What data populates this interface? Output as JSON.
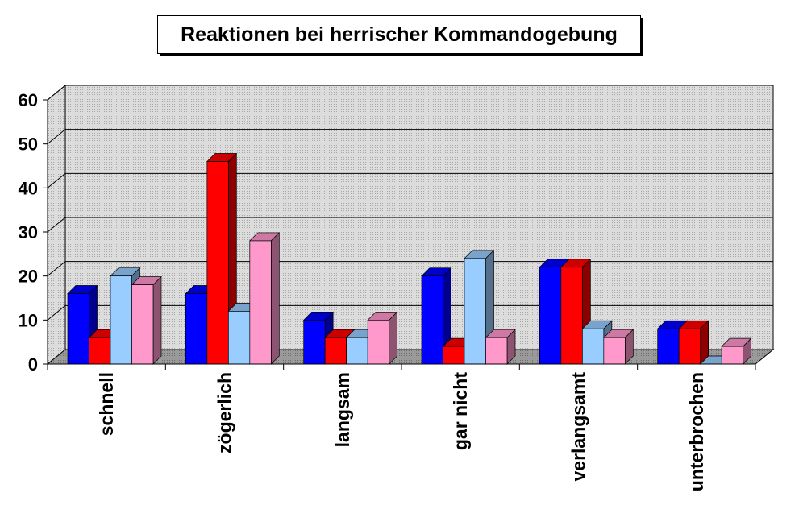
{
  "chart_data": {
    "type": "bar",
    "title": "Reaktionen bei herrischer Kommandogebung",
    "xlabel": "",
    "ylabel": "",
    "ylim": [
      0,
      60
    ],
    "yticks": [
      0,
      10,
      20,
      30,
      40,
      50,
      60
    ],
    "categories": [
      "schnell",
      "zögerlich",
      "langsam",
      "gar nicht",
      "verlangsamt",
      "unterbrochen"
    ],
    "series": [
      {
        "values": [
          16,
          16,
          10,
          20,
          22,
          8
        ],
        "color": "#0000ff"
      },
      {
        "values": [
          6,
          46,
          6,
          4,
          22,
          8
        ],
        "color": "#ff0000"
      },
      {
        "values": [
          20,
          12,
          6,
          24,
          8,
          0
        ],
        "color": "#99ccff"
      },
      {
        "values": [
          18,
          28,
          10,
          6,
          6,
          4
        ],
        "color": "#ff99cc"
      }
    ],
    "grid": true,
    "legend": "none",
    "style": "3d-clustered-bar"
  }
}
